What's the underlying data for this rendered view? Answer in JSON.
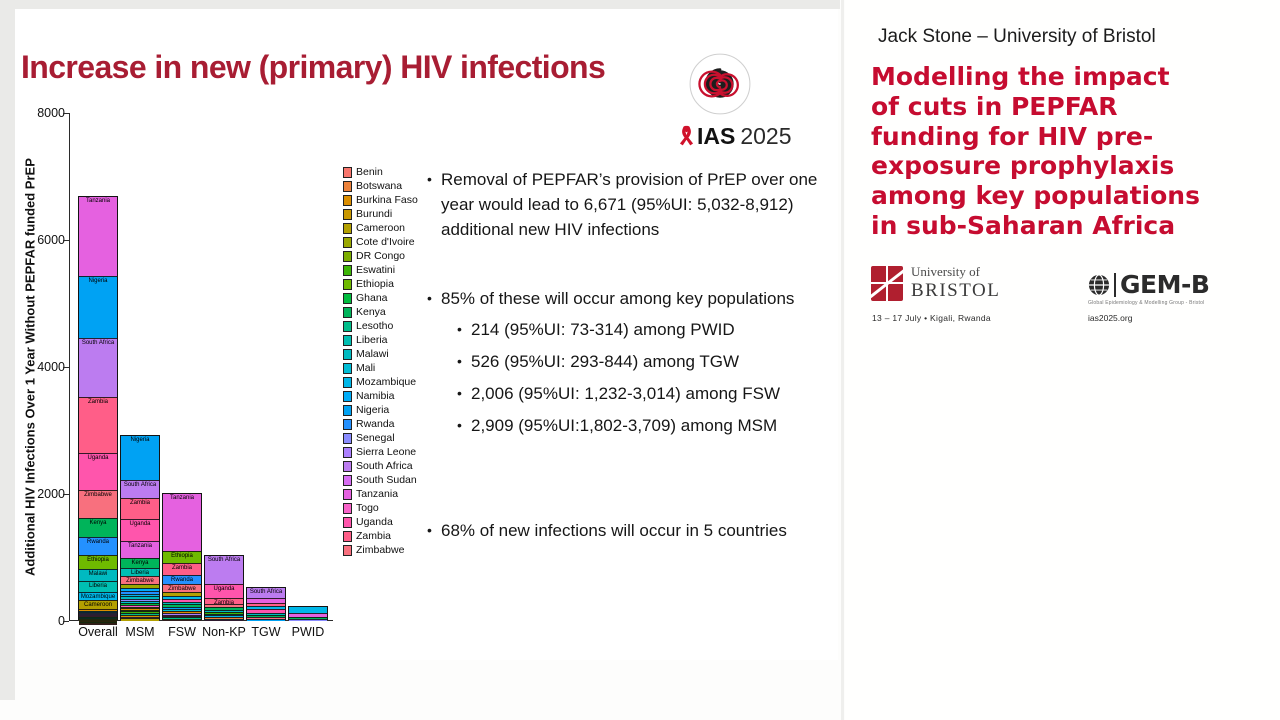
{
  "slide": {
    "title": "Increase in new (primary) HIV infections",
    "ias_logo": {
      "icon": "imigongo-spiral-logo",
      "ribbon_icon": "aids-ribbon-icon",
      "name": "IAS",
      "year": "2025"
    },
    "points": [
      {
        "level": 1,
        "gap": 0,
        "text": "Removal of PEPFAR’s provision of PrEP over one year would lead to 6,671 (95%UI: 5,032-8,912) additional new HIV infections"
      },
      {
        "level": 1,
        "gap": 44,
        "text": "85% of these will occur among key populations"
      },
      {
        "level": 2,
        "gap": 6,
        "text": "214 (95%UI: 73-314) among PWID"
      },
      {
        "level": 2,
        "gap": 7,
        "text": "526 (95%UI: 293-844) among TGW"
      },
      {
        "level": 2,
        "gap": 7,
        "text": "2,006 (95%UI: 1,232-3,014) among FSW"
      },
      {
        "level": 2,
        "gap": 7,
        "text": "2,909 (95%UI:1,802-3,709) among MSM"
      },
      {
        "level": 1,
        "gap": 80,
        "text": "68% of new infections will occur in 5 countries"
      }
    ]
  },
  "chart_data": {
    "type": "bar",
    "stacked": true,
    "title": "",
    "xlabel": "",
    "ylabel": "Additional HIV Infections Over 1 Year Without PEPFAR funded PrEP",
    "ylim": [
      0,
      8000
    ],
    "yticks": [
      0,
      2000,
      4000,
      6000,
      8000
    ],
    "grid": false,
    "legend_position": "right-of-plot",
    "categories": [
      "Overall",
      "MSM",
      "FSW",
      "Non-KP",
      "TGW",
      "PWID"
    ],
    "totals": [
      6671,
      2909,
      2006,
      1016,
      526,
      214
    ],
    "legend_countries": [
      {
        "name": "Benin",
        "color": "#F8766D"
      },
      {
        "name": "Botswana",
        "color": "#EC823B"
      },
      {
        "name": "Burkina Faso",
        "color": "#DB8E00"
      },
      {
        "name": "Burundi",
        "color": "#C99800"
      },
      {
        "name": "Cameroon",
        "color": "#B3A000"
      },
      {
        "name": "Cote d'Ivoire",
        "color": "#9AA800"
      },
      {
        "name": "DR Congo",
        "color": "#7CAE00"
      },
      {
        "name": "Eswatini",
        "color": "#3DB607"
      },
      {
        "name": "Ethiopia",
        "color": "#6FBA00"
      },
      {
        "name": "Ghana",
        "color": "#00BC3E"
      },
      {
        "name": "Kenya",
        "color": "#00B45A"
      },
      {
        "name": "Lesotho",
        "color": "#00BE8A"
      },
      {
        "name": "Liberia",
        "color": "#00BFB2"
      },
      {
        "name": "Malawi",
        "color": "#00BAC0"
      },
      {
        "name": "Mali",
        "color": "#00BDD5"
      },
      {
        "name": "Mozambique",
        "color": "#00B7E8"
      },
      {
        "name": "Namibia",
        "color": "#00ADF8"
      },
      {
        "name": "Nigeria",
        "color": "#00A2F3"
      },
      {
        "name": "Rwanda",
        "color": "#2491FF"
      },
      {
        "name": "Senegal",
        "color": "#8A8CFF"
      },
      {
        "name": "Sierra Leone",
        "color": "#AC80FF"
      },
      {
        "name": "South Africa",
        "color": "#BC7CF0"
      },
      {
        "name": "South Sudan",
        "color": "#D76DF2"
      },
      {
        "name": "Tanzania",
        "color": "#E561E0"
      },
      {
        "name": "Togo",
        "color": "#F863C9"
      },
      {
        "name": "Uganda",
        "color": "#FF55AC"
      },
      {
        "name": "Zambia",
        "color": "#FF5E88"
      },
      {
        "name": "Zimbabwe",
        "color": "#F8707E"
      }
    ],
    "bars": [
      {
        "category": "Overall",
        "segments": [
          {
            "c": "Tanzania",
            "v": 1243,
            "l": 1
          },
          {
            "c": "Nigeria",
            "v": 966,
            "l": 1
          },
          {
            "c": "South Africa",
            "v": 938,
            "l": 1
          },
          {
            "c": "Zambia",
            "v": 883,
            "l": 1
          },
          {
            "c": "Uganda",
            "v": 580,
            "l": 1
          },
          {
            "c": "Zimbabwe",
            "v": 442,
            "l": 1
          },
          {
            "c": "Kenya",
            "v": 303,
            "l": 1
          },
          {
            "c": "Rwanda",
            "v": 276,
            "l": 1
          },
          {
            "c": "Ethiopia",
            "v": 221,
            "l": 1
          },
          {
            "c": "Malawi",
            "v": 193,
            "l": 1
          },
          {
            "c": "Liberia",
            "v": 166,
            "l": 1
          },
          {
            "c": "Mozambique",
            "v": 138,
            "l": 1
          },
          {
            "c": "Cameroon",
            "v": 138,
            "l": 1
          },
          {
            "c": "Burkina Faso",
            "v": 20
          },
          {
            "c": "Mali",
            "v": 18
          },
          {
            "c": "Namibia",
            "v": 16
          },
          {
            "c": "Senegal",
            "v": 15
          },
          {
            "c": "Sierra Leone",
            "v": 14
          },
          {
            "c": "South Sudan",
            "v": 13
          },
          {
            "c": "Togo",
            "v": 12
          },
          {
            "c": "Ghana",
            "v": 12
          },
          {
            "c": "Lesotho",
            "v": 11
          },
          {
            "c": "DR Congo",
            "v": 10
          },
          {
            "c": "Cote d'Ivoire",
            "v": 10
          },
          {
            "c": "Burundi",
            "v": 9
          },
          {
            "c": "Eswatini",
            "v": 8
          },
          {
            "c": "Botswana",
            "v": 8
          },
          {
            "c": "Benin",
            "v": 8
          }
        ]
      },
      {
        "category": "MSM",
        "segments": [
          {
            "c": "Nigeria",
            "v": 693,
            "l": 1
          },
          {
            "c": "South Africa",
            "v": 277,
            "l": 1
          },
          {
            "c": "Zambia",
            "v": 339,
            "l": 1
          },
          {
            "c": "Uganda",
            "v": 339,
            "l": 1
          },
          {
            "c": "Tanzania",
            "v": 277,
            "l": 1
          },
          {
            "c": "Kenya",
            "v": 154,
            "l": 1
          },
          {
            "c": "Liberia",
            "v": 123,
            "l": 1
          },
          {
            "c": "Zimbabwe",
            "v": 123,
            "l": 1
          },
          {
            "c": "Cote d'Ivoire",
            "v": 60
          },
          {
            "c": "Namibia",
            "v": 50
          },
          {
            "c": "Rwanda",
            "v": 45
          },
          {
            "c": "Mozambique",
            "v": 45
          },
          {
            "c": "Malawi",
            "v": 40
          },
          {
            "c": "Senegal",
            "v": 35
          },
          {
            "c": "Mali",
            "v": 30
          },
          {
            "c": "Ghana",
            "v": 30
          },
          {
            "c": "Togo",
            "v": 30
          },
          {
            "c": "Ethiopia",
            "v": 25
          },
          {
            "c": "Burkina Faso",
            "v": 25
          },
          {
            "c": "DR Congo",
            "v": 20
          },
          {
            "c": "Eswatini",
            "v": 30
          },
          {
            "c": "Lesotho",
            "v": 30
          },
          {
            "c": "Burundi",
            "v": 25
          },
          {
            "c": "South Sudan",
            "v": 25
          },
          {
            "c": "Cameroon",
            "v": 39
          }
        ]
      },
      {
        "category": "FSW",
        "segments": [
          {
            "c": "Tanzania",
            "v": 906,
            "l": 1
          },
          {
            "c": "Ethiopia",
            "v": 185,
            "l": 1
          },
          {
            "c": "Zambia",
            "v": 192,
            "l": 1
          },
          {
            "c": "Rwanda",
            "v": 137,
            "l": 1
          },
          {
            "c": "Zimbabwe",
            "v": 137,
            "l": 1
          },
          {
            "c": "Cameroon",
            "v": 55
          },
          {
            "c": "Mozambique",
            "v": 50
          },
          {
            "c": "Uganda",
            "v": 45
          },
          {
            "c": "Malawi",
            "v": 40
          },
          {
            "c": "Kenya",
            "v": 40
          },
          {
            "c": "Nigeria",
            "v": 35
          },
          {
            "c": "Mali",
            "v": 30
          },
          {
            "c": "Burkina Faso",
            "v": 30
          },
          {
            "c": "Sierra Leone",
            "v": 25
          },
          {
            "c": "South Sudan",
            "v": 25
          },
          {
            "c": "Togo",
            "v": 20
          },
          {
            "c": "Lesotho",
            "v": 20
          },
          {
            "c": "DR Congo",
            "v": 18
          },
          {
            "c": "Benin",
            "v": 16
          }
        ]
      },
      {
        "category": "Non-KP",
        "segments": [
          {
            "c": "South Africa",
            "v": 430,
            "l": 1
          },
          {
            "c": "Uganda",
            "v": 220,
            "l": 1
          },
          {
            "c": "Zambia",
            "v": 100,
            "l": 1
          },
          {
            "c": "Zimbabwe",
            "v": 50
          },
          {
            "c": "Kenya",
            "v": 40
          },
          {
            "c": "Malawi",
            "v": 35
          },
          {
            "c": "Eswatini",
            "v": 30
          },
          {
            "c": "Lesotho",
            "v": 25
          },
          {
            "c": "Mozambique",
            "v": 25
          },
          {
            "c": "Botswana",
            "v": 25
          },
          {
            "c": "Namibia",
            "v": 20
          },
          {
            "c": "Tanzania",
            "v": 16
          }
        ]
      },
      {
        "category": "TGW",
        "segments": [
          {
            "c": "South Africa",
            "v": 166,
            "l": 1
          },
          {
            "c": "Tanzania",
            "v": 70
          },
          {
            "c": "Zambia",
            "v": 60
          },
          {
            "c": "Mozambique",
            "v": 45
          },
          {
            "c": "Uganda",
            "v": 55
          },
          {
            "c": "Malawi",
            "v": 40
          },
          {
            "c": "Kenya",
            "v": 35
          },
          {
            "c": "Zimbabwe",
            "v": 30
          },
          {
            "c": "Nigeria",
            "v": 25
          }
        ]
      },
      {
        "category": "PWID",
        "segments": [
          {
            "c": "Mozambique",
            "v": 80
          },
          {
            "c": "Tanzania",
            "v": 75
          },
          {
            "c": "Kenya",
            "v": 30
          },
          {
            "c": "Senegal",
            "v": 29
          }
        ]
      }
    ]
  },
  "right_panel": {
    "speaker": "Jack Stone – University of Bristol",
    "title_lines": [
      "Modelling the impact",
      "of cuts in PEPFAR",
      "funding for HIV pre-",
      "exposure prophylaxis",
      "among key populations",
      "in sub-Saharan Africa"
    ],
    "title_color": "#C60C30",
    "bristol_logo": {
      "icon": "bristol-crest-icon",
      "line1": "University of",
      "line2": "BRISTOL"
    },
    "gemb_logo": {
      "icon": "globe-icon",
      "name": "GEM-B",
      "subtitle": "Global Epidemiology & Modelling Group - Bristol"
    },
    "conference_info": "13 – 17 July   •   Kigali, Rwanda",
    "website": "ias2025.org"
  }
}
